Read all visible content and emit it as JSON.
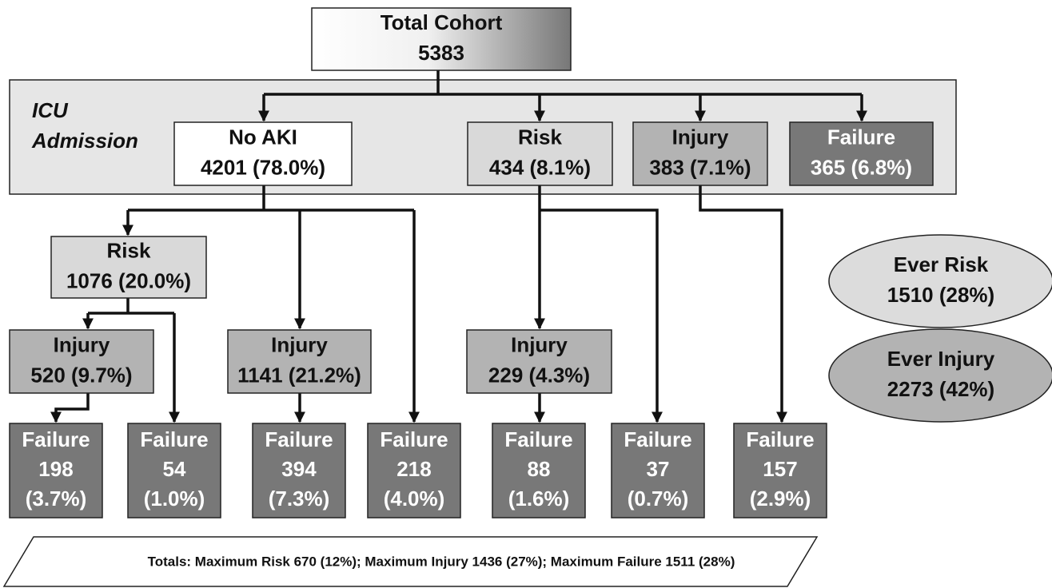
{
  "side_label": {
    "lines": [
      "ICU",
      "Admission"
    ]
  },
  "nodes": [
    {
      "lines": [
        "Total Cohort",
        "5383"
      ]
    },
    {
      "lines": [
        "No AKI",
        "4201 (78.0%)"
      ]
    },
    {
      "lines": [
        "Risk",
        "434 (8.1%)"
      ]
    },
    {
      "lines": [
        "Injury",
        "383 (7.1%)"
      ]
    },
    {
      "lines": [
        "Failure",
        "365 (6.8%)"
      ]
    },
    {
      "lines": [
        "Risk",
        "1076 (20.0%)"
      ]
    },
    {
      "lines": [
        "Injury",
        "520 (9.7%)"
      ]
    },
    {
      "lines": [
        "Injury",
        "1141 (21.2%)"
      ]
    },
    {
      "lines": [
        "Injury",
        "229 (4.3%)"
      ]
    },
    {
      "lines": [
        "Failure",
        "198",
        "(3.7%)"
      ]
    },
    {
      "lines": [
        "Failure",
        "54",
        "(1.0%)"
      ]
    },
    {
      "lines": [
        "Failure",
        "394",
        "(7.3%)"
      ]
    },
    {
      "lines": [
        "Failure",
        "218",
        "(4.0%)"
      ]
    },
    {
      "lines": [
        "Failure",
        "88",
        "(1.6%)"
      ]
    },
    {
      "lines": [
        "Failure",
        "37",
        "(0.7%)"
      ]
    },
    {
      "lines": [
        "Failure",
        "157",
        "(2.9%)"
      ]
    },
    {
      "lines": [
        "Ever Risk",
        "1510 (28%)"
      ]
    },
    {
      "lines": [
        "Ever Injury",
        "2273 (42%)"
      ]
    }
  ],
  "footer": "Totals: Maximum Risk 670 (12%); Maximum Injury 1436 (27%); Maximum Failure 1511 (28%)"
}
